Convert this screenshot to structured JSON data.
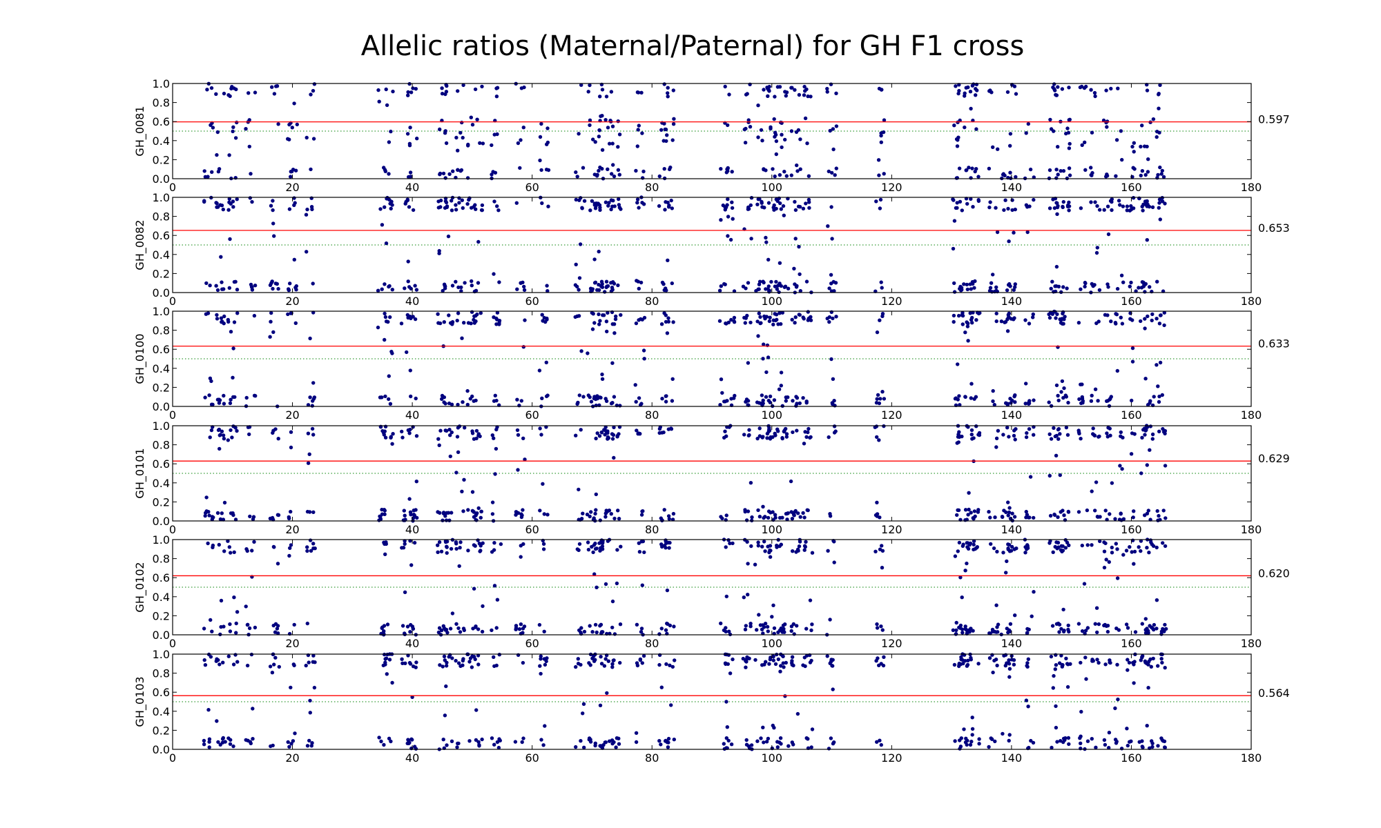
{
  "chart_data": {
    "type": "scatter",
    "title": "Allelic ratios (Maternal/Paternal) for GH F1 cross",
    "xlim": [
      0,
      180
    ],
    "ylim": [
      0.0,
      1.0
    ],
    "x_ticks": [
      "0",
      "20",
      "40",
      "60",
      "80",
      "100",
      "120",
      "140",
      "160",
      "180"
    ],
    "y_ticks": [
      "0.0",
      "0.2",
      "0.4",
      "0.6",
      "0.8",
      "1.0"
    ],
    "reference_line": 0.5,
    "colors": {
      "points": "#00007f",
      "mean_line": "#ff0000",
      "reference_line": "#008000"
    },
    "clusters": [
      6,
      8,
      10,
      13,
      17,
      20,
      23,
      35,
      36,
      39,
      40,
      45,
      46,
      48,
      50,
      51,
      54,
      58,
      62,
      68,
      70,
      71,
      72,
      73,
      74,
      78,
      82,
      83,
      92,
      93,
      96,
      98,
      99,
      100,
      101,
      102,
      104,
      106,
      110,
      118,
      131,
      132,
      133,
      134,
      137,
      139,
      140,
      143,
      147,
      148,
      149,
      152,
      154,
      156,
      158,
      160,
      162,
      163,
      165
    ],
    "panels": [
      {
        "ylabel": "GH_0081",
        "mean": 0.597,
        "mean_label": "0.597",
        "mid_level": 0.48
      },
      {
        "ylabel": "GH_0082",
        "mean": 0.653,
        "mean_label": "0.653",
        "mid_level": null
      },
      {
        "ylabel": "GH_0100",
        "mean": 0.633,
        "mean_label": "0.633",
        "mid_level": null
      },
      {
        "ylabel": "GH_0101",
        "mean": 0.629,
        "mean_label": "0.629",
        "mid_level": null
      },
      {
        "ylabel": "GH_0102",
        "mean": 0.62,
        "mean_label": "0.620",
        "mid_level": null
      },
      {
        "ylabel": "GH_0103",
        "mean": 0.564,
        "mean_label": "0.564",
        "mid_level": null
      }
    ]
  }
}
